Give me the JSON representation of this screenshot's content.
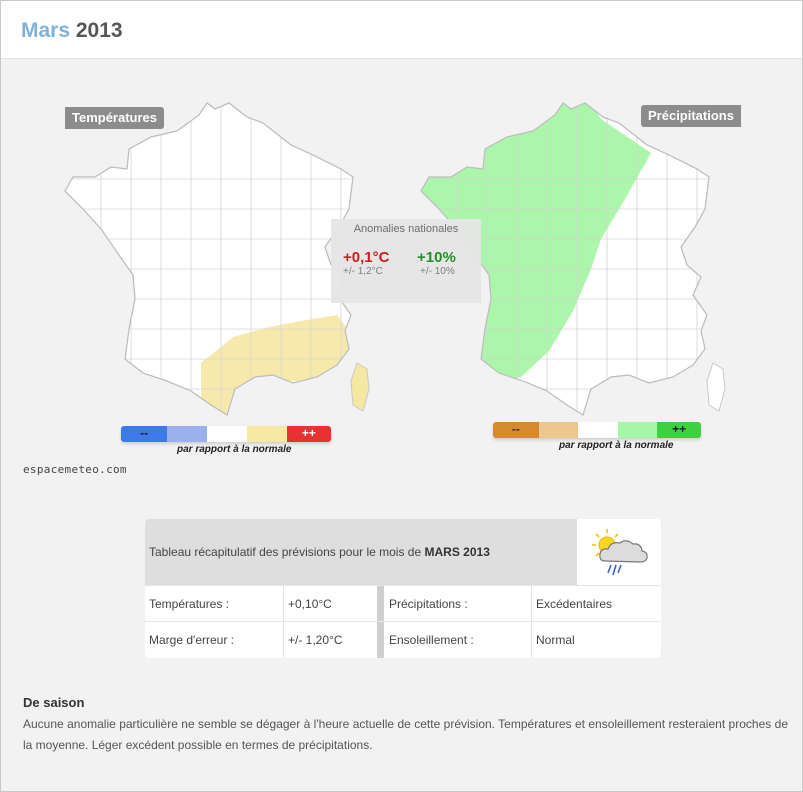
{
  "header": {
    "month": "Mars",
    "year": "2013"
  },
  "maps": {
    "temperature_label": "Températures",
    "precipitation_label": "Précipitations",
    "national_anomalies": {
      "title": "Anomalies nationales",
      "temperature_value": "+0,1°C",
      "temperature_error": "+/- 1,2°C",
      "precipitation_value": "+10%",
      "precipitation_error": "+/- 10%"
    },
    "temperature_legend": {
      "low_label": "--",
      "high_label": "++",
      "caption": "par rapport à la normale",
      "colors": [
        "#3d7ae8",
        "#9bb0ec",
        "#ffffff",
        "#f6e7a2",
        "#e83232"
      ]
    },
    "precipitation_legend": {
      "low_label": "--",
      "high_label": "++",
      "caption": "par rapport à la normale",
      "colors": [
        "#d78a2d",
        "#eec78e",
        "#ffffff",
        "#a7f5a7",
        "#3ed03e"
      ]
    },
    "credit": "espacemeteo.com",
    "regions": {
      "temperature": {
        "mediterranean": "warmer (yellow)",
        "rest": "normal (white)"
      },
      "precipitation": {
        "west": "excess (green)",
        "east": "normal (white)"
      }
    }
  },
  "summary_table": {
    "header_text": "Tableau récapitulatif des prévisions pour le mois de",
    "header_month": "MARS 2013",
    "weather_icon": "sun-cloud-rain-icon",
    "rows": [
      {
        "label1": "Températures :",
        "value1": "+0,10°C",
        "label2": "Précipitations :",
        "value2": "Excédentaires"
      },
      {
        "label1": "Marge d'erreur :",
        "value1": "+/- 1,20°C",
        "label2": "Ensoleillement :",
        "value2": "Normal"
      }
    ]
  },
  "forecast": {
    "title": "De saison",
    "text": "Aucune anomalie particulière ne semble se dégager à l'heure actuelle de cette prévision. Températures et ensoleillement resteraient proches de la moyenne. Léger excédent possible en termes de précipitations."
  }
}
